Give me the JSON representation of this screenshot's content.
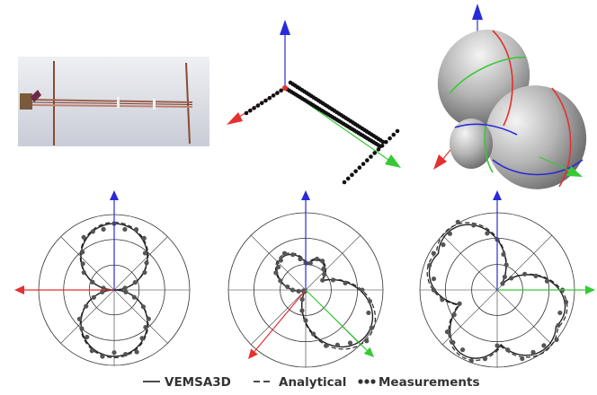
{
  "colors": {
    "x_axis": "#e53030",
    "y_axis": "#36c936",
    "z_axis": "#2a2ad8",
    "curve": "#222222",
    "measurement": "#555555",
    "grid": "#333333",
    "photo_bg": "#d8dbe3",
    "surface": "#b8b8b8"
  },
  "legend": {
    "items": [
      {
        "label": "VEMSA3D",
        "style": "solid"
      },
      {
        "label": "Analytical",
        "style": "dashed"
      },
      {
        "label": "Measurements",
        "style": "dots"
      }
    ]
  },
  "panels": {
    "top": [
      "antenna-photo",
      "wire-model-3d",
      "radiation-pattern-3d"
    ],
    "bottom": [
      {
        "name": "polar-plot-1",
        "pattern": "figure-eight",
        "axes": [
          "z-up",
          "x-left"
        ]
      },
      {
        "name": "polar-plot-2",
        "pattern": "tilted-lobes",
        "axes": [
          "z-up",
          "x-diag-down-left",
          "y-diag-down-right"
        ]
      },
      {
        "name": "polar-plot-3",
        "pattern": "three-lobe",
        "axes": [
          "z-up",
          "y-right"
        ]
      }
    ]
  }
}
